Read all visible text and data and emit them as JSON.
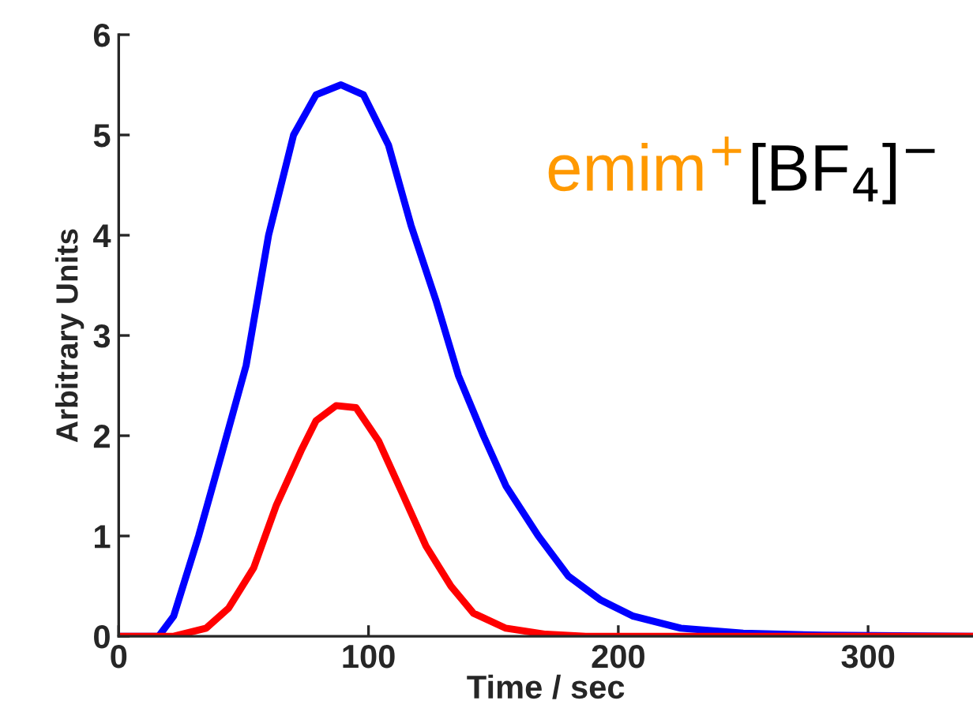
{
  "chart_data": {
    "type": "line",
    "xlabel": "Time / sec",
    "ylabel": "Arbitrary Units",
    "xlim": [
      0,
      342
    ],
    "xticks": [
      0,
      100,
      200,
      300
    ],
    "ylim": [
      0,
      6
    ],
    "yticks": [
      0,
      1,
      2,
      3,
      4,
      5,
      6
    ],
    "grid": false,
    "legend": false,
    "marker": "none",
    "line_style": "solid",
    "series": [
      {
        "color": "#0000ff",
        "x": [
          0,
          16,
          22,
          32,
          41,
          51,
          60,
          70,
          79,
          89,
          98,
          108,
          117,
          127,
          136,
          146,
          155,
          168,
          180,
          193,
          206,
          225,
          250,
          282,
          342
        ],
        "values": [
          0,
          0,
          0.2,
          1.0,
          1.8,
          2.7,
          4.0,
          5.0,
          5.4,
          5.5,
          5.4,
          4.9,
          4.1,
          3.35,
          2.6,
          2.0,
          1.5,
          1.0,
          0.6,
          0.36,
          0.2,
          0.08,
          0.03,
          0.01,
          0
        ]
      },
      {
        "color": "#ff0000",
        "x": [
          0,
          22,
          35,
          44,
          54,
          63,
          73,
          79,
          87,
          95,
          104,
          114,
          123,
          133,
          142,
          155,
          171,
          187,
          342
        ],
        "values": [
          0,
          0,
          0.08,
          0.28,
          0.68,
          1.3,
          1.85,
          2.15,
          2.3,
          2.28,
          1.95,
          1.4,
          0.9,
          0.5,
          0.23,
          0.08,
          0.02,
          0,
          0
        ]
      }
    ],
    "annotations": [
      "emim$^{+}$",
      "[BF$_{4}$]$^{−}$"
    ]
  }
}
